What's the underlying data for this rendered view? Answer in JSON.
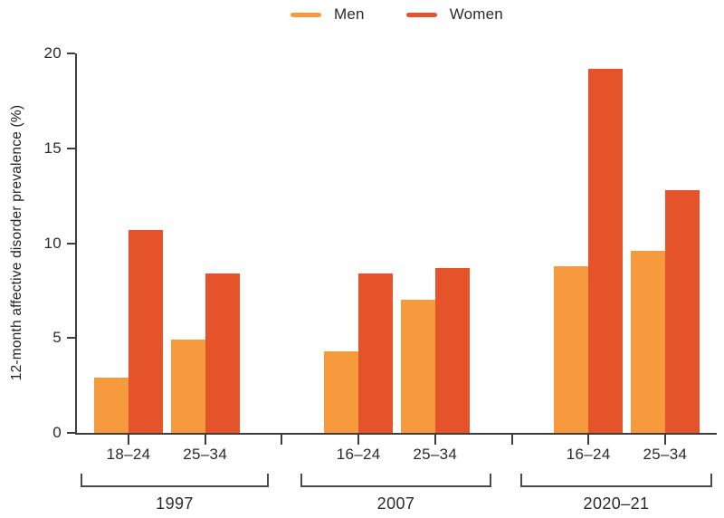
{
  "chart_data": {
    "type": "bar",
    "title": "",
    "xlabel": "",
    "ylabel": "12-month affective disorder prevalence (%)",
    "ylim": [
      0,
      20
    ],
    "yticks": [
      0,
      5,
      10,
      15,
      20
    ],
    "grid": false,
    "legend_position": "top-center",
    "legend": [
      {
        "label": "Men",
        "color": "#F79A3E"
      },
      {
        "label": "Women",
        "color": "#E4532A"
      }
    ],
    "groups": [
      {
        "year": "1997",
        "categories": [
          "18–24",
          "25–34"
        ],
        "series": [
          {
            "name": "Men",
            "values": [
              2.9,
              4.9
            ]
          },
          {
            "name": "Women",
            "values": [
              10.7,
              8.4
            ]
          }
        ]
      },
      {
        "year": "2007",
        "categories": [
          "16–24",
          "25–34"
        ],
        "series": [
          {
            "name": "Men",
            "values": [
              4.3,
              7.0
            ]
          },
          {
            "name": "Women",
            "values": [
              8.4,
              8.7
            ]
          }
        ]
      },
      {
        "year": "2020–21",
        "categories": [
          "16–24",
          "25–34"
        ],
        "series": [
          {
            "name": "Men",
            "values": [
              8.8,
              9.6
            ]
          },
          {
            "name": "Women",
            "values": [
              19.2,
              12.8
            ]
          }
        ]
      }
    ],
    "axis_color": "#3d3d3d",
    "text_color": "#2b2b2b"
  }
}
